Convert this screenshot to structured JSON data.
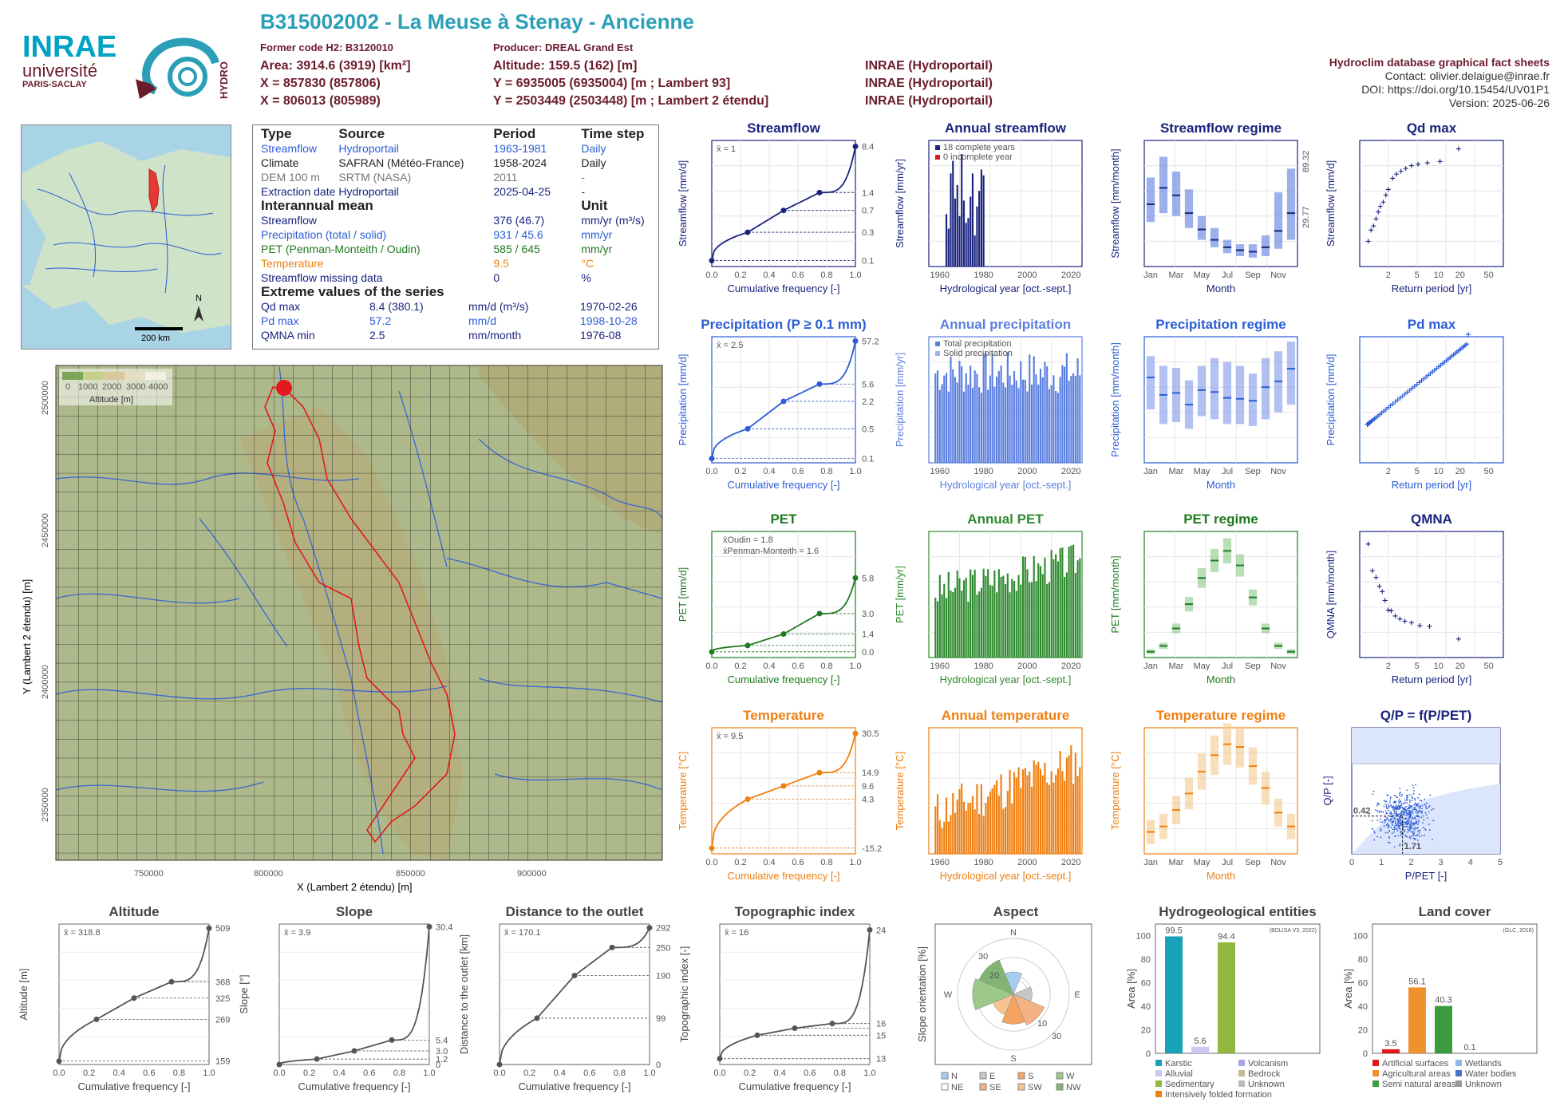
{
  "header": {
    "title": "B315002002 - La Meuse à Stenay - Ancienne",
    "former_code": "Former code H2: B3120010",
    "producer": "Producer: DREAL Grand Est",
    "area": "Area: 3914.6 (3919) [km²]",
    "altitude": "Altitude: 159.5 (162) [m]",
    "x93": "X = 857830 (857806)",
    "y93": "Y = 6935005 (6935004) [m ; Lambert 93]",
    "x2": "X = 806013 (805989)",
    "y2": "Y = 2503449 (2503448) [m ; Lambert 2 étendu]",
    "src1": "INRAE (Hydroportail)",
    "src2": "INRAE (Hydroportail)",
    "src3": "INRAE (Hydroportail)",
    "db_title": "Hydroclim database graphical fact sheets",
    "contact": "Contact: olivier.delaigue@inrae.fr",
    "doi": "DOI: https://doi.org/10.15454/UV01P1",
    "version": "Version: 2025-06-26"
  },
  "logos": {
    "inrae": "INRAE",
    "universite": "université",
    "paris_saclay": "PARIS-SACLAY",
    "hydro": "HYDRO"
  },
  "overview_map": {
    "scale": "200 km",
    "north": "N"
  },
  "info": {
    "h_type": "Type",
    "h_source": "Source",
    "h_period": "Period",
    "h_step": "Time step",
    "rows": [
      {
        "type": "Streamflow",
        "source": "Hydroportail",
        "period": "1963-1981",
        "step": "Daily"
      },
      {
        "type": "Climate",
        "source": "SAFRAN (Météo-France)",
        "period": "1958-2024",
        "step": "Daily"
      },
      {
        "type": "DEM 100 m",
        "source": "SRTM (NASA)",
        "period": "2011",
        "step": "-"
      },
      {
        "type": "Extraction date",
        "source": "Hydroportail",
        "period": "2025-04-25",
        "step": "-"
      }
    ],
    "h_mean": "Interannual mean",
    "h_unit": "Unit",
    "means": [
      {
        "label": "Streamflow",
        "value": "376 (46.7)",
        "unit": "mm/yr (m³/s)"
      },
      {
        "label": "Precipitation (total / solid)",
        "value": "931 / 45.6",
        "unit": "mm/yr"
      },
      {
        "label": "PET (Penman-Monteith / Oudin)",
        "value": "585 / 645",
        "unit": "mm/yr"
      },
      {
        "label": "Temperature",
        "value": "9.5",
        "unit": "°C"
      },
      {
        "label": "Streamflow missing data",
        "value": "0",
        "unit": "%"
      }
    ],
    "h_extreme": "Extreme values of the series",
    "extremes": [
      {
        "label": "Qd max",
        "value": "8.4 (380.1)",
        "unit": "mm/d (m³/s)",
        "date": "1970-02-26"
      },
      {
        "label": "Pd max",
        "value": "57.2",
        "unit": "mm/d",
        "date": "1998-10-28"
      },
      {
        "label": "QMNA min",
        "value": "2.5",
        "unit": "mm/month",
        "date": "1976-08"
      }
    ]
  },
  "main_map": {
    "legend_title": "Altitude [m]",
    "legend_ticks": [
      "0",
      "1000",
      "2000",
      "3000",
      "4000"
    ],
    "xlabel": "X (Lambert 2 étendu) [m]",
    "ylabel": "Y (Lambert 2 étendu) [m]",
    "xticks": [
      "750000",
      "800000",
      "850000",
      "900000"
    ],
    "yticks": [
      "2500000",
      "2450000",
      "2400000",
      "2350000"
    ]
  },
  "chart_data": [
    {
      "id": "streamflow",
      "type": "line",
      "title": "Streamflow",
      "xlabel": "Cumulative frequency [-]",
      "ylabel": "Streamflow [mm/d]",
      "mean": "x̄ = 1",
      "log_y": true,
      "x": [
        0,
        0.25,
        0.5,
        0.75,
        1
      ],
      "y": [
        0.1,
        0.3,
        0.7,
        1.4,
        8.4
      ],
      "right_ticks": [
        "8.4",
        "1.4",
        "0.7",
        "0.3",
        "0.1"
      ],
      "color": "#1a237e"
    },
    {
      "id": "annual_streamflow",
      "type": "bar",
      "title": "Annual streamflow",
      "xlabel": "Hydrological year [oct.-sept.]",
      "ylabel": "Streamflow [mm/yr]",
      "legend": [
        "18 complete years",
        "0 incomplete year"
      ],
      "x": [
        1963,
        1964,
        1965,
        1966,
        1967,
        1968,
        1969,
        1970,
        1971,
        1972,
        1973,
        1974,
        1975,
        1976,
        1977,
        1978,
        1979,
        1980
      ],
      "values": [
        270,
        195,
        480,
        545,
        350,
        420,
        260,
        580,
        340,
        225,
        250,
        360,
        480,
        160,
        310,
        390,
        500,
        470
      ],
      "ylim": [
        0,
        650
      ],
      "color": "#1a237e"
    },
    {
      "id": "streamflow_regime",
      "type": "bar",
      "title": "Streamflow regime",
      "xlabel": "Month",
      "ylabel": "Streamflow [mm/month]",
      "categories": [
        "Jan",
        "Feb",
        "Mar",
        "Apr",
        "May",
        "Jun",
        "Jul",
        "Aug",
        "Sep",
        "Oct",
        "Nov",
        "Dec"
      ],
      "median": [
        42,
        53,
        48,
        36,
        25,
        18,
        13,
        11,
        10,
        13,
        24,
        36
      ],
      "low": [
        30,
        36,
        34,
        26,
        18,
        13,
        9,
        7,
        6,
        7,
        12,
        18
      ],
      "high": [
        60,
        74,
        64,
        52,
        34,
        26,
        18,
        15,
        15,
        21,
        50,
        66
      ],
      "ylim": [
        0,
        85
      ],
      "right_ticks": [
        "89.32",
        "29.77"
      ],
      "color": "#3c5cd6"
    },
    {
      "id": "qd_max",
      "type": "scatter",
      "title": "Qd max",
      "xlabel": "Return period [yr]",
      "ylabel": "Streamflow [mm/d]",
      "log_x": true,
      "x": [
        1.05,
        1.15,
        1.25,
        1.35,
        1.45,
        1.55,
        1.7,
        1.85,
        2.0,
        2.3,
        2.6,
        3.0,
        3.5,
        4.2,
        5.2,
        7,
        10.5,
        19
      ],
      "y": [
        1.8,
        2.6,
        2.9,
        3.4,
        3.9,
        4.3,
        4.6,
        5.1,
        5.5,
        6.3,
        6.6,
        6.8,
        7.0,
        7.2,
        7.3,
        7.4,
        7.5,
        8.4
      ],
      "ylim": [
        0,
        9
      ],
      "color": "#1a237e"
    },
    {
      "id": "precipitation",
      "type": "line",
      "title": "Precipitation (P ≥ 0.1 mm)",
      "xlabel": "Cumulative frequency [-]",
      "ylabel": "Precipitation [mm/d]",
      "mean": "x̄ = 2.5",
      "log_y": true,
      "x": [
        0,
        0.25,
        0.5,
        0.75,
        1
      ],
      "y": [
        0.1,
        0.5,
        2.2,
        5.6,
        57.2
      ],
      "right_ticks": [
        "57.2",
        "5.6",
        "2.2",
        "0.5",
        "0.1"
      ],
      "color": "#2b5cd6"
    },
    {
      "id": "annual_precipitation",
      "type": "bar",
      "title": "Annual precipitation",
      "xlabel": "Hydrological year [oct.-sept.]",
      "ylabel": "Precipitation [mm/yr]",
      "legend": [
        "Total precipitation",
        "Solid precipitation"
      ],
      "ylim": [
        0,
        1300
      ],
      "color": "#5b7fe0"
    },
    {
      "id": "precipitation_regime",
      "type": "bar",
      "title": "Precipitation regime",
      "xlabel": "Month",
      "ylabel": "Precipitation [mm/month]",
      "categories": [
        "Jan",
        "Feb",
        "Mar",
        "Apr",
        "May",
        "Jun",
        "Jul",
        "Aug",
        "Sep",
        "Oct",
        "Nov",
        "Dec"
      ],
      "median": [
        88,
        70,
        72,
        60,
        75,
        73,
        67,
        66,
        64,
        78,
        84,
        97
      ],
      "low": [
        55,
        40,
        42,
        35,
        48,
        45,
        40,
        40,
        38,
        45,
        52,
        60
      ],
      "high": [
        110,
        100,
        98,
        85,
        100,
        108,
        104,
        100,
        92,
        108,
        115,
        125
      ],
      "ylim": [
        0,
        130
      ],
      "color": "#3c5cd6"
    },
    {
      "id": "pd_max",
      "type": "scatter",
      "title": "Pd max",
      "xlabel": "Return period [yr]",
      "ylabel": "Precipitation [mm/d]",
      "log_x": true,
      "ylim": [
        0,
        60
      ],
      "color": "#2b5cd6"
    },
    {
      "id": "pet",
      "type": "line",
      "title": "PET",
      "xlabel": "Cumulative frequency [-]",
      "ylabel": "PET [mm/d]",
      "mean_oudin": "x̄Oudin = 1.8",
      "mean_pm": "x̄Penman-Monteith = 1.6",
      "x": [
        0,
        0.25,
        0.5,
        0.75,
        1
      ],
      "y": [
        0,
        0.5,
        1.4,
        3.0,
        5.8
      ],
      "right_ticks": [
        "5.8",
        "3.0",
        "1.4",
        "0.0"
      ],
      "ylim": [
        0,
        9
      ],
      "color": "#1f7a1f"
    },
    {
      "id": "annual_pet",
      "type": "bar",
      "title": "Annual PET",
      "xlabel": "Hydrological year [oct.-sept.]",
      "ylabel": "PET [mm/yr]",
      "ylim": [
        400,
        820
      ],
      "color": "#2e8b2e"
    },
    {
      "id": "pet_regime",
      "type": "bar",
      "title": "PET regime",
      "xlabel": "Month",
      "ylabel": "PET [mm/month]",
      "categories": [
        "Jan",
        "Feb",
        "Mar",
        "Apr",
        "May",
        "Jun",
        "Jul",
        "Aug",
        "Sep",
        "Oct",
        "Nov",
        "Dec"
      ],
      "median": [
        6,
        12,
        30,
        55,
        82,
        100,
        110,
        95,
        62,
        30,
        12,
        6
      ],
      "ylim": [
        0,
        130
      ],
      "color": "#1f7a1f"
    },
    {
      "id": "qmna",
      "type": "scatter",
      "title": "QMNA",
      "xlabel": "Return period [yr]",
      "ylabel": "QMNA [mm/month]",
      "log_x": true,
      "x": [
        1.05,
        1.2,
        1.35,
        1.5,
        1.65,
        1.8,
        2.0,
        2.2,
        2.5,
        2.9,
        3.4,
        4.2,
        5.5,
        7.5,
        19
      ],
      "y": [
        15.3,
        11.7,
        10.8,
        9.6,
        8.9,
        7.7,
        6.4,
        6.3,
        5.6,
        5.2,
        4.9,
        4.7,
        4.3,
        4.2,
        2.5
      ],
      "ylim": [
        0,
        17
      ],
      "color": "#1a237e"
    },
    {
      "id": "temperature",
      "type": "line",
      "title": "Temperature",
      "xlabel": "Cumulative frequency [-]",
      "ylabel": "Temperature [°C]",
      "mean": "x̄ = 9.5",
      "x": [
        0,
        0.25,
        0.5,
        0.75,
        1
      ],
      "y": [
        -15.2,
        4.3,
        9.6,
        14.9,
        30.5
      ],
      "right_ticks": [
        "30.5",
        "14.9",
        "9.6",
        "4.3",
        "-15.2"
      ],
      "color": "#ef7f10"
    },
    {
      "id": "annual_temperature",
      "type": "bar",
      "title": "Annual temperature",
      "xlabel": "Hydrological year [oct.-sept.]",
      "ylabel": "Temperature [°C]",
      "ylim": [
        8,
        12
      ],
      "color": "#ef7f10"
    },
    {
      "id": "temperature_regime",
      "type": "bar",
      "title": "Temperature regime",
      "xlabel": "Month",
      "ylabel": "Temperature [°C]",
      "categories": [
        "Jan",
        "Feb",
        "Mar",
        "Apr",
        "May",
        "Jun",
        "Jul",
        "Aug",
        "Sep",
        "Oct",
        "Nov",
        "Dec"
      ],
      "median": [
        2,
        3,
        6,
        9,
        13,
        16,
        18,
        17.5,
        14,
        10,
        5.5,
        3
      ],
      "ylim": [
        -2,
        21
      ],
      "color": "#f0c080"
    },
    {
      "id": "qp",
      "type": "scatter",
      "title": "Q/P = f(P/PET)",
      "xlabel": "P/PET [-]",
      "ylabel": "Q/P [-]",
      "annot_y": "0.42",
      "annot_x": "1.71",
      "xlim": [
        0,
        5
      ],
      "ylim": [
        0,
        1.4
      ]
    },
    {
      "id": "altitude",
      "type": "line",
      "title": "Altitude",
      "xlabel": "Cumulative frequency [-]",
      "ylabel": "Altitude [m]",
      "mean": "x̄ = 318.8",
      "x": [
        0,
        0.25,
        0.5,
        0.75,
        1
      ],
      "y": [
        159,
        269,
        325,
        368,
        509
      ],
      "right_ticks": [
        "509",
        "368",
        "325",
        "269",
        "159"
      ],
      "ylim": [
        150,
        520
      ]
    },
    {
      "id": "slope",
      "type": "line",
      "title": "Slope",
      "xlabel": "Cumulative frequency [-]",
      "ylabel": "Slope [°]",
      "mean": "x̄ = 3.9",
      "x": [
        0,
        0.25,
        0.5,
        0.75,
        1
      ],
      "y": [
        0,
        1.2,
        3.0,
        5.4,
        30.4
      ],
      "right_ticks": [
        "30.4",
        "5.4",
        "3.0",
        "1.2",
        "0"
      ],
      "ylim": [
        0,
        31
      ]
    },
    {
      "id": "distance",
      "type": "line",
      "title": "Distance to the outlet",
      "xlabel": "Cumulative frequency [-]",
      "ylabel": "Distance to the outlet [km]",
      "mean": "x̄ = 170.1",
      "x": [
        0,
        0.25,
        0.5,
        0.75,
        1
      ],
      "y": [
        0,
        99,
        190,
        250,
        292
      ],
      "right_ticks": [
        "292",
        "250",
        "190",
        "99",
        "0"
      ],
      "ylim": [
        0,
        300
      ]
    },
    {
      "id": "topographic",
      "type": "line",
      "title": "Topographic index",
      "xlabel": "Cumulative frequency [-]",
      "ylabel": "Topographic index [-]",
      "mean": "x̄ = 16",
      "x": [
        0,
        0.25,
        0.5,
        0.75,
        1
      ],
      "y": [
        13,
        15,
        15.6,
        16,
        24
      ],
      "right_ticks": [
        "24",
        "16",
        "15",
        "13"
      ],
      "ylim": [
        12.5,
        24.5
      ]
    },
    {
      "id": "aspect",
      "type": "pie",
      "title": "Aspect",
      "ylabel": "Slope orientation [%]",
      "labels": [
        "N",
        "NE",
        "E",
        "SE",
        "S",
        "SW",
        "W",
        "NW"
      ],
      "values": [
        12,
        8,
        10,
        18,
        16,
        12,
        22,
        20
      ],
      "ticks": [
        "30",
        "20",
        "10",
        "30"
      ]
    },
    {
      "id": "hydrogeology",
      "type": "bar",
      "title": "Hydrogeological entities",
      "ylabel": "Area [%]",
      "source": "(BDLISA V3, 2022)",
      "categories": [
        "Karstic",
        "Alluvial",
        "Sedimentary",
        "Intensively folded formation",
        "Volcanism",
        "Bedrock",
        "Unknown"
      ],
      "values": [
        99.5,
        5.6,
        94.4,
        0,
        0,
        0,
        0
      ],
      "ylim": [
        0,
        110
      ]
    },
    {
      "id": "land_cover",
      "type": "bar",
      "title": "Land cover",
      "ylabel": "Area [%]",
      "source": "(GLC, 2018)",
      "categories": [
        "Artificial surfaces",
        "Agricultural areas",
        "Semi natural areas",
        "Wetlands",
        "Water bodies",
        "Unknown"
      ],
      "values": [
        3.5,
        56.1,
        40.3,
        0.1,
        0,
        0
      ],
      "ylim": [
        0,
        110
      ]
    }
  ],
  "colors": {
    "teal": "#2a9fb7",
    "maroon": "#6b1c2c",
    "dblue": "#1a237e",
    "blue": "#2b5cd6",
    "green": "#1f7a1f",
    "orange": "#ef7f10"
  }
}
